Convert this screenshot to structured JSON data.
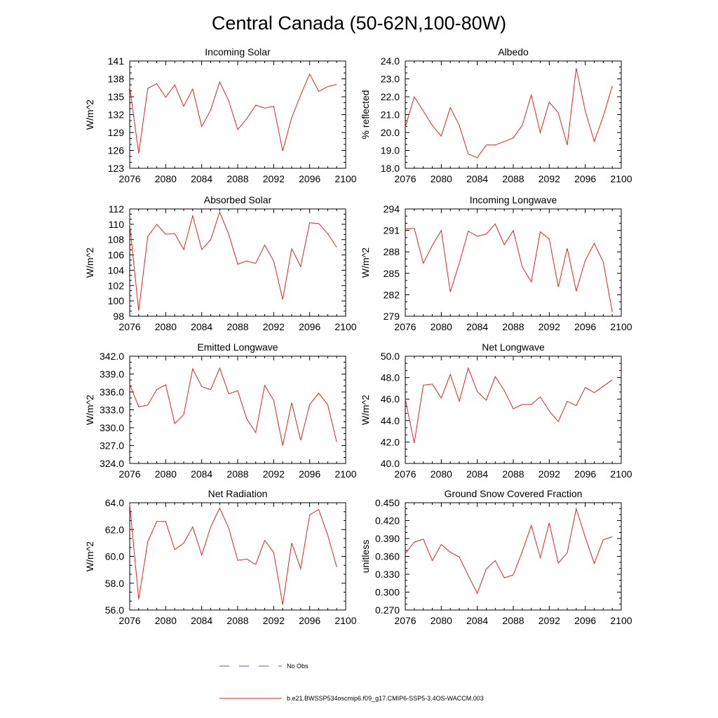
{
  "figure": {
    "title": "Central Canada (50-62N,100-80W)",
    "legend": {
      "obs_label": "No Obs",
      "obs_color": "#5a5ab4",
      "model_label": "b.e21.BWSSP534oscmip6.f09_g17.CMIP6-SSP5-3.4OS-WACCM.003",
      "model_color": "#e8221d"
    }
  },
  "chart_data": [
    {
      "type": "line",
      "title": "Incoming Solar",
      "xlabel": "",
      "ylabel": "W/m^2",
      "xlim": [
        2076,
        2100
      ],
      "ylim": [
        123,
        141
      ],
      "xticks": [
        "2076",
        "2080",
        "2084",
        "2088",
        "2092",
        "2096",
        "2100"
      ],
      "yticks": [
        "123",
        "126",
        "129",
        "132",
        "135",
        "138",
        "141"
      ],
      "x": [
        2076,
        2077,
        2078,
        2079,
        2080,
        2081,
        2082,
        2083,
        2084,
        2085,
        2086,
        2087,
        2088,
        2089,
        2090,
        2091,
        2092,
        2093,
        2094,
        2095,
        2096,
        2097,
        2098,
        2099
      ],
      "series": [
        {
          "name": "b.e21.BWSSP534oscmip6.f09_g17.CMIP6-SSP5-3.4OS-WACCM.003",
          "values": [
            136.7,
            125.5,
            136.4,
            137.2,
            134.9,
            137.0,
            133.4,
            136.3,
            130.0,
            132.8,
            137.5,
            134.3,
            129.5,
            131.3,
            133.6,
            133.1,
            133.4,
            125.9,
            131.5,
            135.3,
            138.8,
            135.9,
            136.7,
            137.1
          ]
        }
      ]
    },
    {
      "type": "line",
      "title": "Albedo",
      "xlabel": "",
      "ylabel": "% reflected",
      "xlim": [
        2076,
        2100
      ],
      "ylim": [
        18.0,
        24.0
      ],
      "xticks": [
        "2076",
        "2080",
        "2084",
        "2088",
        "2092",
        "2096",
        "2100"
      ],
      "yticks": [
        "18.0",
        "19.0",
        "20.0",
        "21.0",
        "22.0",
        "23.0",
        "24.0"
      ],
      "x": [
        2076,
        2077,
        2078,
        2079,
        2080,
        2081,
        2082,
        2083,
        2084,
        2085,
        2086,
        2087,
        2088,
        2089,
        2090,
        2091,
        2092,
        2093,
        2094,
        2095,
        2096,
        2097,
        2098,
        2099
      ],
      "series": [
        {
          "name": "b.e21.BWSSP534oscmip6.f09_g17.CMIP6-SSP5-3.4OS-WACCM.003",
          "values": [
            20.3,
            22.0,
            21.2,
            20.4,
            19.8,
            21.4,
            20.4,
            18.8,
            18.6,
            19.3,
            19.3,
            19.5,
            19.7,
            20.4,
            22.1,
            20.0,
            21.7,
            21.1,
            19.3,
            23.6,
            21.2,
            19.5,
            20.9,
            22.6
          ]
        }
      ]
    },
    {
      "type": "line",
      "title": "Absorbed Solar",
      "xlabel": "",
      "ylabel": "W/m^2",
      "xlim": [
        2076,
        2100
      ],
      "ylim": [
        98,
        112
      ],
      "xticks": [
        "2076",
        "2080",
        "2084",
        "2088",
        "2092",
        "2096",
        "2100"
      ],
      "yticks": [
        "98",
        "100",
        "102",
        "104",
        "106",
        "108",
        "110",
        "112"
      ],
      "x": [
        2076,
        2077,
        2078,
        2079,
        2080,
        2081,
        2082,
        2083,
        2084,
        2085,
        2086,
        2087,
        2088,
        2089,
        2090,
        2091,
        2092,
        2093,
        2094,
        2095,
        2096,
        2097,
        2098,
        2099
      ],
      "series": [
        {
          "name": "b.e21.BWSSP534oscmip6.f09_g17.CMIP6-SSP5-3.4OS-WACCM.003",
          "values": [
            110.0,
            98.7,
            108.4,
            110.0,
            108.7,
            108.8,
            106.7,
            111.1,
            106.7,
            108.0,
            111.6,
            108.7,
            104.8,
            105.2,
            104.9,
            107.3,
            105.2,
            100.2,
            106.8,
            104.5,
            110.2,
            110.1,
            108.8,
            107.0
          ]
        }
      ]
    },
    {
      "type": "line",
      "title": "Incoming Longwave",
      "xlabel": "",
      "ylabel": "W/m^2",
      "xlim": [
        2076,
        2100
      ],
      "ylim": [
        279,
        294
      ],
      "xticks": [
        "2076",
        "2080",
        "2084",
        "2088",
        "2092",
        "2096",
        "2100"
      ],
      "yticks": [
        "279",
        "282",
        "285",
        "288",
        "291",
        "294"
      ],
      "x": [
        2076,
        2077,
        2078,
        2079,
        2080,
        2081,
        2082,
        2083,
        2084,
        2085,
        2086,
        2087,
        2088,
        2089,
        2090,
        2091,
        2092,
        2093,
        2094,
        2095,
        2096,
        2097,
        2098,
        2099
      ],
      "series": [
        {
          "name": "b.e21.BWSSP534oscmip6.f09_g17.CMIP6-SSP5-3.4OS-WACCM.003",
          "values": [
            291.2,
            291.3,
            286.4,
            288.9,
            291.0,
            282.4,
            286.4,
            290.9,
            290.2,
            290.5,
            291.9,
            289.0,
            291.0,
            285.9,
            283.8,
            290.8,
            289.8,
            283.1,
            288.5,
            282.5,
            286.8,
            289.2,
            286.6,
            279.6
          ]
        }
      ]
    },
    {
      "type": "line",
      "title": "Emitted Longwave",
      "xlabel": "",
      "ylabel": "W/m^2",
      "xlim": [
        2076,
        2100
      ],
      "ylim": [
        324.0,
        342.0
      ],
      "xticks": [
        "2076",
        "2080",
        "2084",
        "2088",
        "2092",
        "2096",
        "2100"
      ],
      "yticks": [
        "324.0",
        "327.0",
        "330.0",
        "333.0",
        "336.0",
        "339.0",
        "342.0"
      ],
      "x": [
        2076,
        2077,
        2078,
        2079,
        2080,
        2081,
        2082,
        2083,
        2084,
        2085,
        2086,
        2087,
        2088,
        2089,
        2090,
        2091,
        2092,
        2093,
        2094,
        2095,
        2096,
        2097,
        2098,
        2099
      ],
      "series": [
        {
          "name": "b.e21.BWSSP534oscmip6.f09_g17.CMIP6-SSP5-3.4OS-WACCM.003",
          "values": [
            337.3,
            333.5,
            333.8,
            336.4,
            337.2,
            330.7,
            332.2,
            339.9,
            336.9,
            336.4,
            340.0,
            335.7,
            336.2,
            331.5,
            329.2,
            337.1,
            334.6,
            327.0,
            334.2,
            327.9,
            333.9,
            335.8,
            333.9,
            327.6
          ]
        }
      ]
    },
    {
      "type": "line",
      "title": "Net Longwave",
      "xlabel": "",
      "ylabel": "W/m^2",
      "xlim": [
        2076,
        2100
      ],
      "ylim": [
        40.0,
        50.0
      ],
      "xticks": [
        "2076",
        "2080",
        "2084",
        "2088",
        "2092",
        "2096",
        "2100"
      ],
      "yticks": [
        "40.0",
        "42.0",
        "44.0",
        "46.0",
        "48.0",
        "50.0"
      ],
      "x": [
        2076,
        2077,
        2078,
        2079,
        2080,
        2081,
        2082,
        2083,
        2084,
        2085,
        2086,
        2087,
        2088,
        2089,
        2090,
        2091,
        2092,
        2093,
        2094,
        2095,
        2096,
        2097,
        2098,
        2099
      ],
      "series": [
        {
          "name": "b.e21.BWSSP534oscmip6.f09_g17.CMIP6-SSP5-3.4OS-WACCM.003",
          "values": [
            46.0,
            41.9,
            47.3,
            47.4,
            46.1,
            48.3,
            45.8,
            48.9,
            46.7,
            45.9,
            48.1,
            46.8,
            45.1,
            45.5,
            45.5,
            46.2,
            44.9,
            43.9,
            45.8,
            45.4,
            47.1,
            46.6,
            47.2,
            47.8
          ]
        }
      ]
    },
    {
      "type": "line",
      "title": "Net Radiation",
      "xlabel": "",
      "ylabel": "W/m^2",
      "xlim": [
        2076,
        2100
      ],
      "ylim": [
        56.0,
        64.0
      ],
      "xticks": [
        "2076",
        "2080",
        "2084",
        "2088",
        "2092",
        "2096",
        "2100"
      ],
      "yticks": [
        "56.0",
        "58.0",
        "60.0",
        "62.0",
        "64.0"
      ],
      "x": [
        2076,
        2077,
        2078,
        2079,
        2080,
        2081,
        2082,
        2083,
        2084,
        2085,
        2086,
        2087,
        2088,
        2089,
        2090,
        2091,
        2092,
        2093,
        2094,
        2095,
        2096,
        2097,
        2098,
        2099
      ],
      "series": [
        {
          "name": "b.e21.BWSSP534oscmip6.f09_g17.CMIP6-SSP5-3.4OS-WACCM.003",
          "values": [
            63.9,
            56.8,
            61.1,
            62.6,
            62.6,
            60.5,
            61.0,
            62.2,
            60.1,
            62.2,
            63.6,
            62.1,
            59.7,
            59.8,
            59.4,
            61.2,
            60.3,
            56.4,
            61.0,
            59.1,
            63.1,
            63.5,
            61.6,
            59.2
          ]
        }
      ]
    },
    {
      "type": "line",
      "title": "Ground Snow Covered Fraction",
      "xlabel": "",
      "ylabel": "unitless",
      "xlim": [
        2076,
        2100
      ],
      "ylim": [
        0.27,
        0.45
      ],
      "xticks": [
        "2076",
        "2080",
        "2084",
        "2088",
        "2092",
        "2096",
        "2100"
      ],
      "yticks": [
        "0.270",
        "0.300",
        "0.330",
        "0.360",
        "0.390",
        "0.420",
        "0.450"
      ],
      "x": [
        2076,
        2077,
        2078,
        2079,
        2080,
        2081,
        2082,
        2083,
        2084,
        2085,
        2086,
        2087,
        2088,
        2089,
        2090,
        2091,
        2092,
        2093,
        2094,
        2095,
        2096,
        2097,
        2098,
        2099
      ],
      "series": [
        {
          "name": "b.e21.BWSSP534oscmip6.f09_g17.CMIP6-SSP5-3.4OS-WACCM.003",
          "values": [
            0.365,
            0.384,
            0.389,
            0.353,
            0.38,
            0.367,
            0.359,
            0.328,
            0.298,
            0.339,
            0.353,
            0.324,
            0.329,
            0.368,
            0.412,
            0.358,
            0.416,
            0.349,
            0.366,
            0.44,
            0.392,
            0.348,
            0.388,
            0.393
          ]
        }
      ]
    }
  ]
}
